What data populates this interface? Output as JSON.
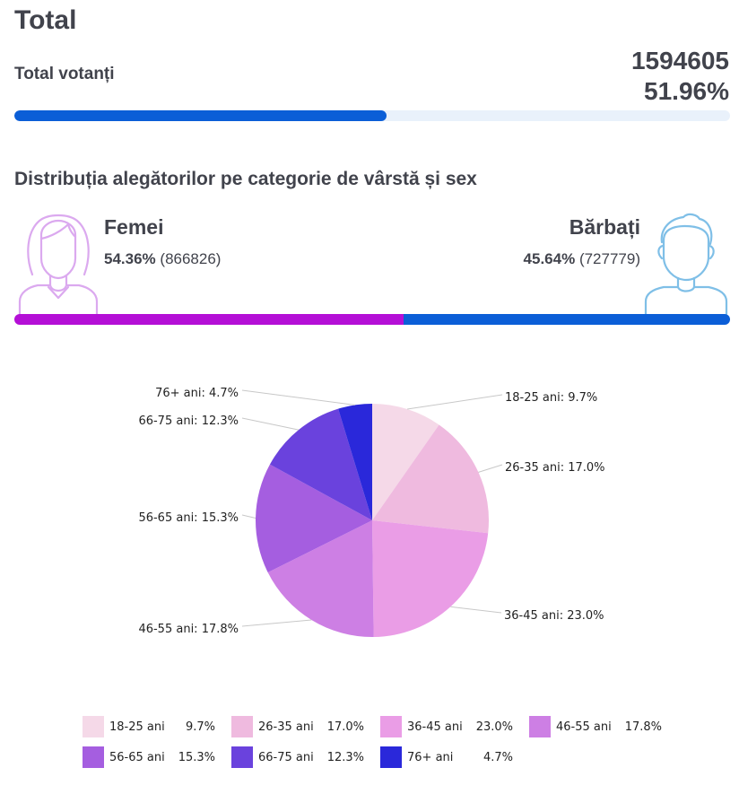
{
  "header": {
    "title": "Total"
  },
  "turnout": {
    "label": "Total votanți",
    "count": "1594605",
    "percent": "51.96%",
    "fraction": 0.5196,
    "bar_color": "#0b5ed7",
    "track_color": "#e9f1fb"
  },
  "distribution": {
    "title": "Distribuția alegătorilor pe categorie de vârstă și sex",
    "female": {
      "label": "Femei",
      "percent": "54.36%",
      "count": "(866826)",
      "fraction": 0.5436,
      "color": "#b40fd6",
      "icon": "female-avatar-icon"
    },
    "male": {
      "label": "Bărbați",
      "percent": "45.64%",
      "count": "(727779)",
      "fraction": 0.4564,
      "color": "#0b5ed7",
      "icon": "male-avatar-icon"
    }
  },
  "chart_data": {
    "type": "pie",
    "categories": [
      "18-25 ani",
      "26-35 ani",
      "36-45 ani",
      "46-55 ani",
      "56-65 ani",
      "66-75 ani",
      "76+ ani"
    ],
    "values": [
      9.7,
      17.0,
      23.0,
      17.8,
      15.3,
      12.3,
      4.7
    ],
    "value_labels": [
      "9.7%",
      "17.0%",
      "23.0%",
      "17.8%",
      "15.3%",
      "12.3%",
      "4.7%"
    ],
    "slice_labels": [
      "18-25 ani: 9.7%",
      "26-35 ani: 17.0%",
      "36-45 ani: 23.0%",
      "46-55 ani: 17.8%",
      "56-65 ani: 15.3%",
      "66-75 ani: 12.3%",
      "76+ ani: 4.7%"
    ],
    "colors": [
      "#f5d9e8",
      "#efbadf",
      "#ea9de6",
      "#cd7fe4",
      "#a55ee0",
      "#6a42dd",
      "#2a28da"
    ],
    "legend_position": "bottom"
  }
}
